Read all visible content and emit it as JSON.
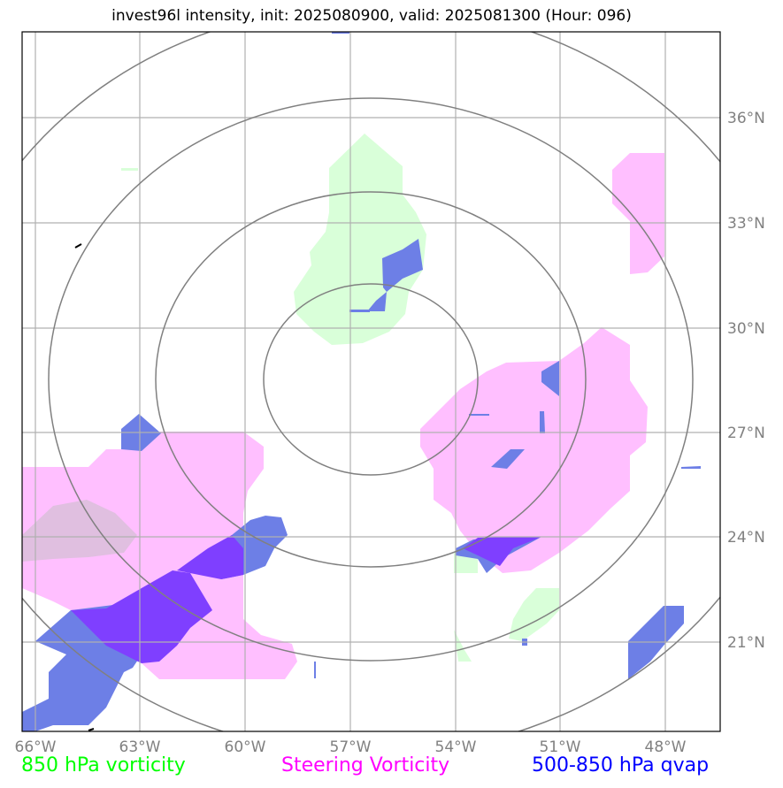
{
  "title": "invest96l intensity, init: 2025080900, valid: 2025081300 (Hour: 096)",
  "lon_ticks": [
    "66°W",
    "63°W",
    "60°W",
    "57°W",
    "54°W",
    "51°W",
    "48°W"
  ],
  "lat_ticks": [
    "36°N",
    "33°N",
    "30°N",
    "27°N",
    "24°N",
    "21°N"
  ],
  "legend": [
    {
      "label": "850 hPa vorticity",
      "color": "#00ff00"
    },
    {
      "label": "Steering Vorticity",
      "color": "#ff00ff"
    },
    {
      "label": "500-850 hPa qvap",
      "color": "#0000ff"
    }
  ],
  "colors": {
    "vort850_fill": "#d9ffd9",
    "steering_fill": "#ffbfff",
    "qvap_fill": "#6d7fe6",
    "overlap_fill": "#7f3fff",
    "range_rings": "#808080",
    "gridlines": "#b0b0b0"
  }
}
